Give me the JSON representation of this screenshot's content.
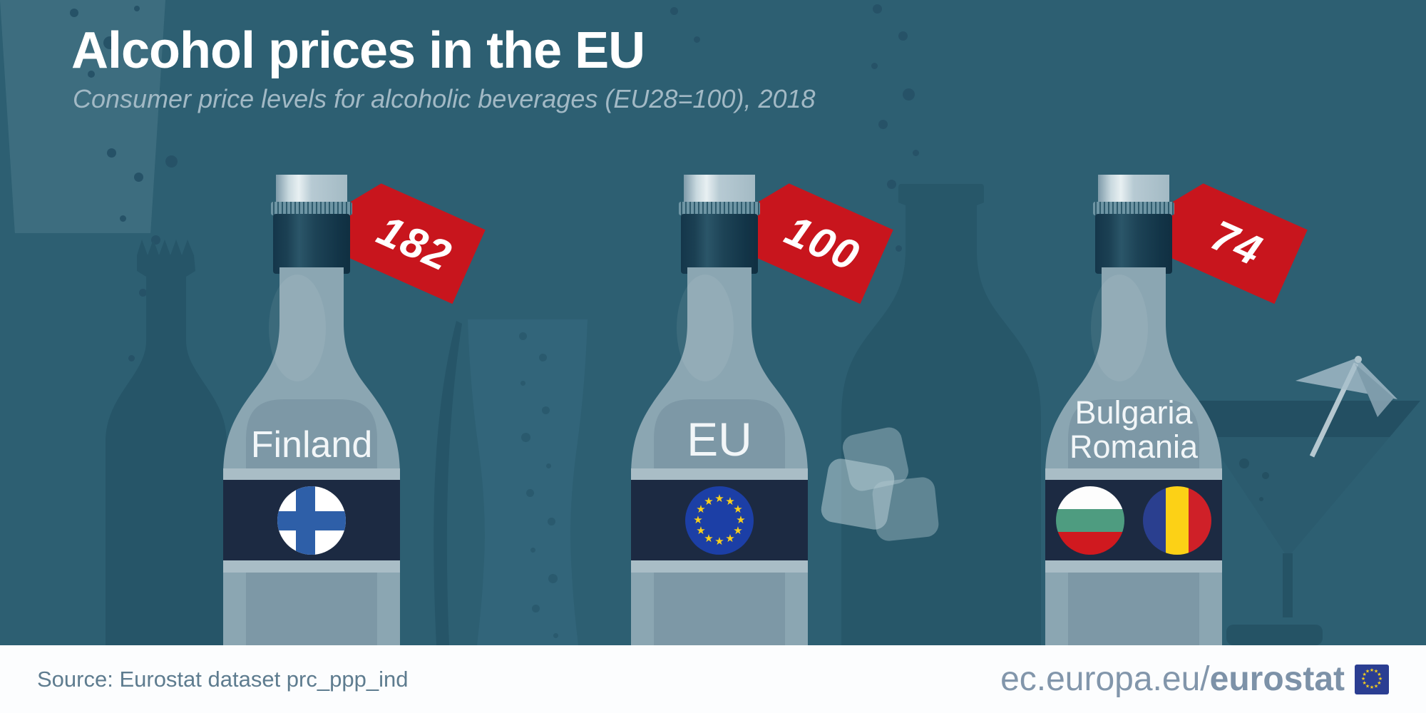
{
  "header": {
    "title": "Alcohol prices in the EU",
    "subtitle": "Consumer price levels for alcoholic beverages (EU28=100), 2018"
  },
  "chart_data": {
    "type": "bar",
    "note": "pictogram infographic: three bottles with red price tags",
    "categories": [
      "Finland",
      "EU",
      "Bulgaria / Romania"
    ],
    "values": [
      182,
      100,
      74
    ],
    "title": "Alcohol prices in the EU",
    "subtitle": "Consumer price levels for alcoholic beverages (EU28=100), 2018",
    "unit": "price level index, EU28=100",
    "year": "2018"
  },
  "bottles": [
    {
      "tag": "182",
      "label1": "Finland",
      "flags": [
        "finland"
      ]
    },
    {
      "tag": "100",
      "label1": "EU",
      "flags": [
        "eu"
      ]
    },
    {
      "tag": "74",
      "label1": "Bulgaria",
      "label2": "Romania",
      "flags": [
        "bulgaria",
        "romania"
      ]
    }
  ],
  "footer": {
    "source": "Source: Eurostat dataset prc_ppp_ind",
    "site_regular": "ec.europa.eu/",
    "site_bold": "eurostat"
  },
  "icons": {
    "star": "★"
  },
  "colors": {
    "background": "#2D5F72",
    "tag_red": "#C8151D",
    "label_band_navy": "#1C2A42",
    "bottle_glass": "#8BA6B2",
    "footer_text": "#5E7C8F",
    "eu_blue": "#1C3FA6",
    "star_yellow": "#F8CF1C"
  }
}
